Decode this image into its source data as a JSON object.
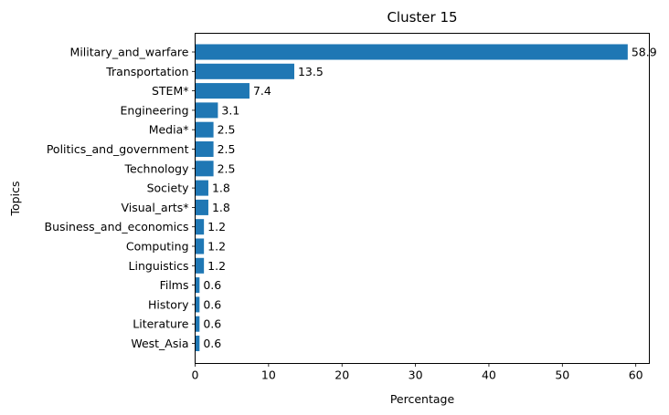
{
  "chart_data": {
    "type": "bar",
    "orientation": "horizontal",
    "title": "Cluster 15",
    "xlabel": "Percentage",
    "ylabel": "Topics",
    "categories": [
      "Military_and_warfare",
      "Transportation",
      "STEM*",
      "Engineering",
      "Media*",
      "Politics_and_government",
      "Technology",
      "Society",
      "Visual_arts*",
      "Business_and_economics",
      "Computing",
      "Linguistics",
      "Films",
      "History",
      "Literature",
      "West_Asia"
    ],
    "values": [
      58.9,
      13.5,
      7.4,
      3.1,
      2.5,
      2.5,
      2.5,
      1.8,
      1.8,
      1.2,
      1.2,
      1.2,
      0.6,
      0.6,
      0.6,
      0.6
    ],
    "value_labels": [
      "58.9",
      "13.5",
      "7.4",
      "3.1",
      "2.5",
      "2.5",
      "2.5",
      "1.8",
      "1.8",
      "1.2",
      "1.2",
      "1.2",
      "0.6",
      "0.6",
      "0.6",
      "0.6"
    ],
    "xlim": [
      0,
      61.845
    ],
    "xticks": [
      0,
      10,
      20,
      30,
      40,
      50,
      60
    ],
    "xtick_labels": [
      "0",
      "10",
      "20",
      "30",
      "40",
      "50",
      "60"
    ],
    "bar_color": "#1f77b4",
    "grid": false,
    "legend": "none"
  }
}
